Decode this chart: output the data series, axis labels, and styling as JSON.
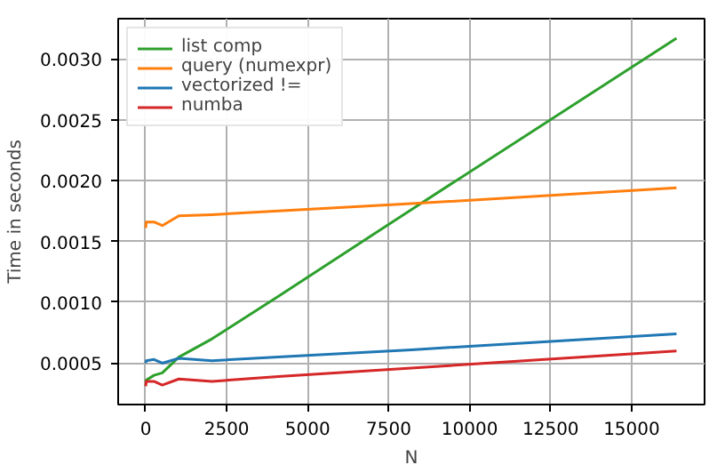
{
  "chart_data": {
    "type": "line",
    "xlabel": "N",
    "ylabel": "Time in seconds",
    "x": [
      1,
      16,
      256,
      512,
      1024,
      2048,
      4096,
      8192,
      16384
    ],
    "xlim": [
      -850,
      17250
    ],
    "ylim": [
      0.00016,
      0.00333
    ],
    "xticks": [
      0,
      2500,
      5000,
      7500,
      10000,
      12500,
      15000
    ],
    "yticks": [
      {
        "value": 0.0005,
        "label": "0.0005"
      },
      {
        "value": 0.001,
        "label": "0.0010"
      },
      {
        "value": 0.0015,
        "label": "0.0015"
      },
      {
        "value": 0.002,
        "label": "0.0020"
      },
      {
        "value": 0.0025,
        "label": "0.0025"
      },
      {
        "value": 0.003,
        "label": "0.0030"
      }
    ],
    "grid": true,
    "legend": "top left",
    "line_style": "solid",
    "series": [
      {
        "name": "list comp",
        "color": "#2ca02c",
        "values": [
          0.00035,
          0.00036,
          0.0004,
          0.00042,
          0.00055,
          0.0007,
          0.00105,
          0.00176,
          0.00317
        ]
      },
      {
        "name": "query (numexpr)",
        "color": "#ff7f0e",
        "values": [
          0.00161,
          0.00166,
          0.00166,
          0.00163,
          0.00171,
          0.00172,
          0.00175,
          0.00181,
          0.00194
        ]
      },
      {
        "name": "vectorized !=",
        "color": "#1f77b4",
        "values": [
          0.0005,
          0.00052,
          0.00053,
          0.0005,
          0.00054,
          0.00052,
          0.00055,
          0.00061,
          0.00074
        ]
      },
      {
        "name": "numba",
        "color": "#d62728",
        "values": [
          0.00031,
          0.00035,
          0.00035,
          0.00032,
          0.00037,
          0.00035,
          0.00039,
          0.00046,
          0.0006
        ]
      }
    ]
  }
}
